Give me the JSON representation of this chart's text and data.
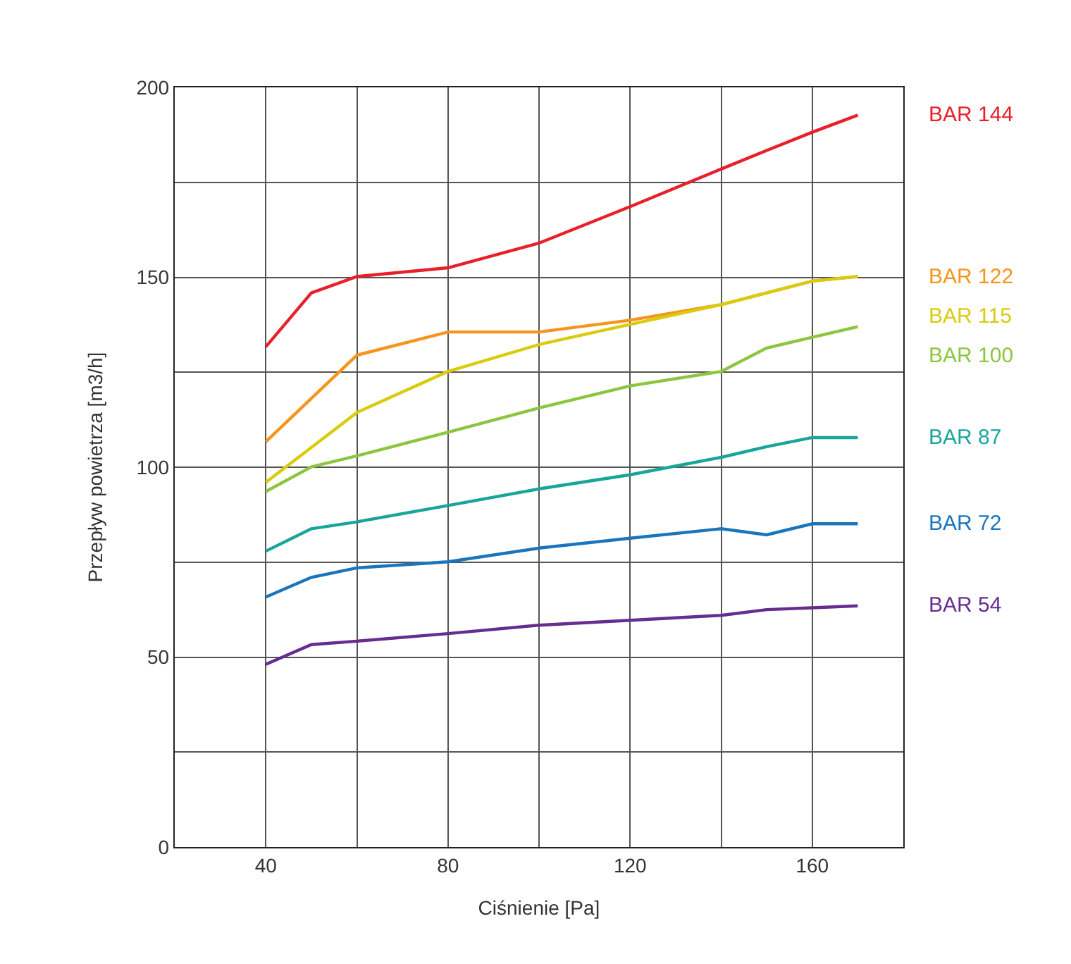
{
  "chart_data": {
    "type": "line",
    "xlabel": "Ciśnienie [Pa]",
    "ylabel": "Przepływ powietrza [m3/h]",
    "x": [
      40,
      50,
      60,
      80,
      100,
      120,
      140,
      150,
      160,
      170
    ],
    "xlim": [
      20,
      180
    ],
    "xticks": [
      40,
      {
        "value": 60,
        "label": null
      },
      80,
      {
        "value": 100,
        "label": null
      },
      120,
      {
        "value": 140,
        "label": null
      },
      160
    ],
    "ylim": [
      0,
      200
    ],
    "yticks": [
      0,
      {
        "value": 25,
        "label": null
      },
      50,
      {
        "value": 75,
        "label": null
      },
      100,
      {
        "value": 125,
        "label": null
      },
      150,
      {
        "value": 175,
        "label": null
      },
      200
    ],
    "grid": true,
    "legend": false,
    "marker": "none",
    "line_style": "solid",
    "series": [
      {
        "name": "BAR 144",
        "color": "#e8202a",
        "values": [
          131.7,
          145.9,
          150.2,
          152.5,
          159,
          168.6,
          178.5,
          183.4,
          188.2,
          192.7
        ]
      },
      {
        "name": "BAR 122",
        "color": "#f7941d",
        "values": [
          106.7,
          118.1,
          129.5,
          135.6,
          135.6,
          138.7,
          142.8,
          145.9,
          149,
          150.2
        ]
      },
      {
        "name": "BAR 115",
        "color": "#d9cc0f",
        "values": [
          96,
          105.2,
          114.4,
          125.2,
          132.3,
          137.6,
          142.8,
          145.9,
          149,
          150.2
        ]
      },
      {
        "name": "BAR 100",
        "color": "#8cc63f",
        "values": [
          93.6,
          100.1,
          103,
          109.2,
          115.6,
          121.4,
          125.2,
          131.4,
          134.2,
          137
        ]
      },
      {
        "name": "BAR 87",
        "color": "#1aa59a",
        "values": [
          77.9,
          83.8,
          85.6,
          89.9,
          94.3,
          98,
          102.6,
          105.4,
          107.8,
          107.8
        ]
      },
      {
        "name": "BAR 72",
        "color": "#1b75bc",
        "values": [
          65.8,
          71,
          73.5,
          75.1,
          78.7,
          81.3,
          83.8,
          82.2,
          85.1,
          85.1
        ]
      },
      {
        "name": "BAR 54",
        "color": "#662d91",
        "values": [
          48.1,
          53.3,
          54.2,
          56.2,
          58.4,
          59.7,
          61,
          62.5,
          63,
          63.5
        ]
      }
    ]
  }
}
